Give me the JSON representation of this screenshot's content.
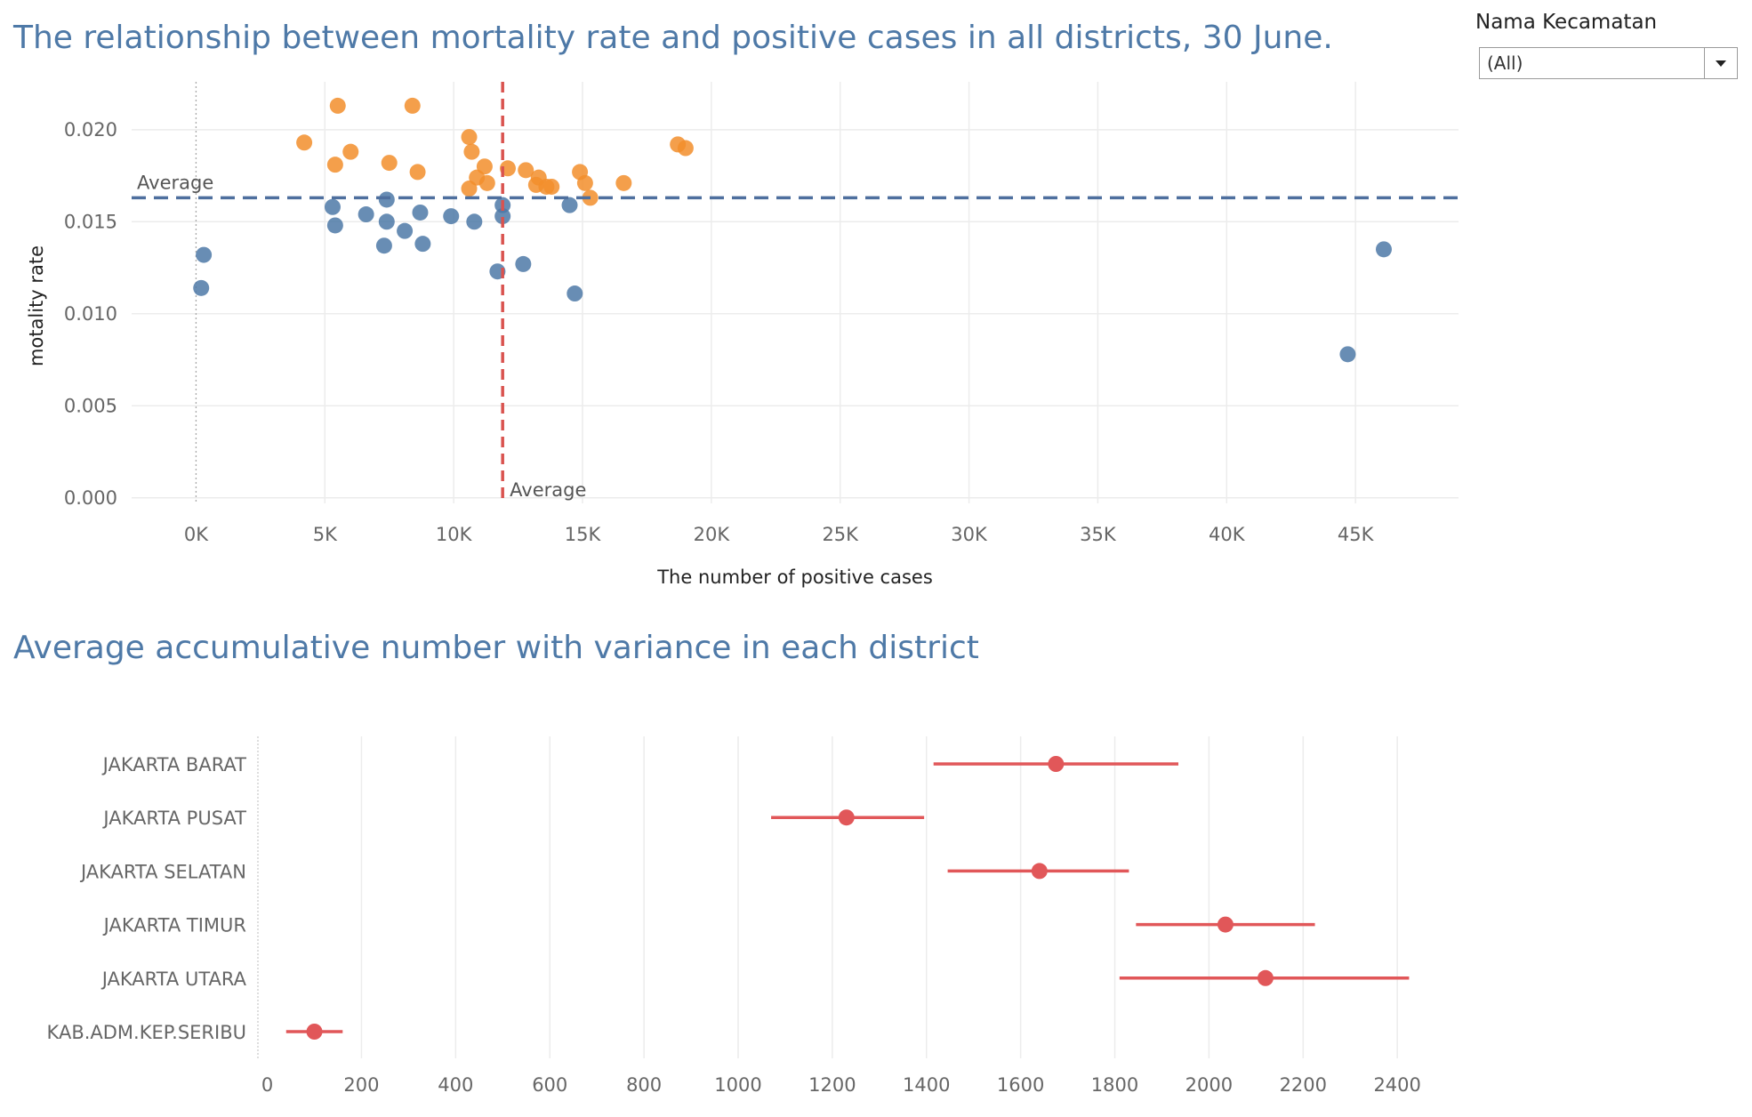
{
  "filter": {
    "label": "Nama Kecamatan",
    "value": "(All)"
  },
  "chart_data": [
    {
      "type": "scatter",
      "title": "The relationship between mortality rate and positive cases in all districts, 30 June.",
      "xlabel": "The number of positive cases",
      "ylabel": "motality rate",
      "xlim": [
        -2500,
        49000
      ],
      "ylim": [
        -0.0003,
        0.0226
      ],
      "x_ticks": [
        0,
        5000,
        10000,
        15000,
        20000,
        25000,
        30000,
        35000,
        40000,
        45000
      ],
      "x_tick_labels": [
        "0K",
        "5K",
        "10K",
        "15K",
        "20K",
        "25K",
        "30K",
        "35K",
        "40K",
        "45K"
      ],
      "y_ticks": [
        0.0,
        0.005,
        0.01,
        0.015,
        0.02
      ],
      "y_tick_labels": [
        "0.000",
        "0.005",
        "0.010",
        "0.015",
        "0.020"
      ],
      "grid": true,
      "reference_lines": [
        {
          "axis": "y",
          "value": 0.0163,
          "label": "Average",
          "color": "#4e6f9e"
        },
        {
          "axis": "x",
          "value": 11900,
          "label": "Average",
          "color": "#d9534f"
        }
      ],
      "colors": {
        "above_average": "#f28e2b",
        "below_average": "#4e79a7"
      },
      "series": [
        {
          "group": "above_average",
          "points": [
            [
              4200,
              0.0193
            ],
            [
              5500,
              0.0213
            ],
            [
              6000,
              0.0188
            ],
            [
              5400,
              0.0181
            ],
            [
              7500,
              0.0182
            ],
            [
              8400,
              0.0213
            ],
            [
              8600,
              0.0177
            ],
            [
              10600,
              0.0196
            ],
            [
              10700,
              0.0188
            ],
            [
              11200,
              0.018
            ],
            [
              10900,
              0.0174
            ],
            [
              11300,
              0.0171
            ],
            [
              10600,
              0.0168
            ],
            [
              12100,
              0.0179
            ],
            [
              12800,
              0.0178
            ],
            [
              13300,
              0.0174
            ],
            [
              13200,
              0.017
            ],
            [
              13600,
              0.0169
            ],
            [
              13800,
              0.0169
            ],
            [
              14900,
              0.0177
            ],
            [
              15100,
              0.0171
            ],
            [
              15300,
              0.0163
            ],
            [
              16600,
              0.0171
            ],
            [
              18700,
              0.0192
            ],
            [
              19000,
              0.019
            ]
          ]
        },
        {
          "group": "below_average",
          "points": [
            [
              300,
              0.0132
            ],
            [
              200,
              0.0114
            ],
            [
              5300,
              0.0158
            ],
            [
              5400,
              0.0148
            ],
            [
              6600,
              0.0154
            ],
            [
              7400,
              0.0162
            ],
            [
              7400,
              0.015
            ],
            [
              7300,
              0.0137
            ],
            [
              8100,
              0.0145
            ],
            [
              8700,
              0.0155
            ],
            [
              8800,
              0.0138
            ],
            [
              9900,
              0.0153
            ],
            [
              10800,
              0.015
            ],
            [
              11900,
              0.0159
            ],
            [
              11900,
              0.0153
            ],
            [
              11700,
              0.0123
            ],
            [
              12700,
              0.0127
            ],
            [
              14500,
              0.0159
            ],
            [
              14700,
              0.0111
            ],
            [
              44700,
              0.0078
            ],
            [
              46100,
              0.0135
            ]
          ]
        }
      ]
    },
    {
      "type": "dot-interval",
      "title": "Average accumulative number with variance in each district",
      "xlim": [
        -20,
        2530
      ],
      "x_ticks": [
        0,
        200,
        400,
        600,
        800,
        1000,
        1200,
        1400,
        1600,
        1800,
        2000,
        2200,
        2400
      ],
      "x_tick_labels": [
        "0",
        "200",
        "400",
        "600",
        "800",
        "1000",
        "1200",
        "1400",
        "1600",
        "1800",
        "2000",
        "2200",
        "2400"
      ],
      "grid": true,
      "color": "#e15759",
      "categories": [
        "JAKARTA BARAT",
        "JAKARTA PUSAT",
        "JAKARTA SELATAN",
        "JAKARTA TIMUR",
        "JAKARTA UTARA",
        "KAB.ADM.KEP.SERIBU"
      ],
      "values": [
        1675,
        1230,
        1640,
        2035,
        2120,
        100
      ],
      "lower": [
        1415,
        1070,
        1445,
        1845,
        1810,
        40
      ],
      "upper": [
        1935,
        1395,
        1830,
        2225,
        2425,
        160
      ]
    }
  ]
}
